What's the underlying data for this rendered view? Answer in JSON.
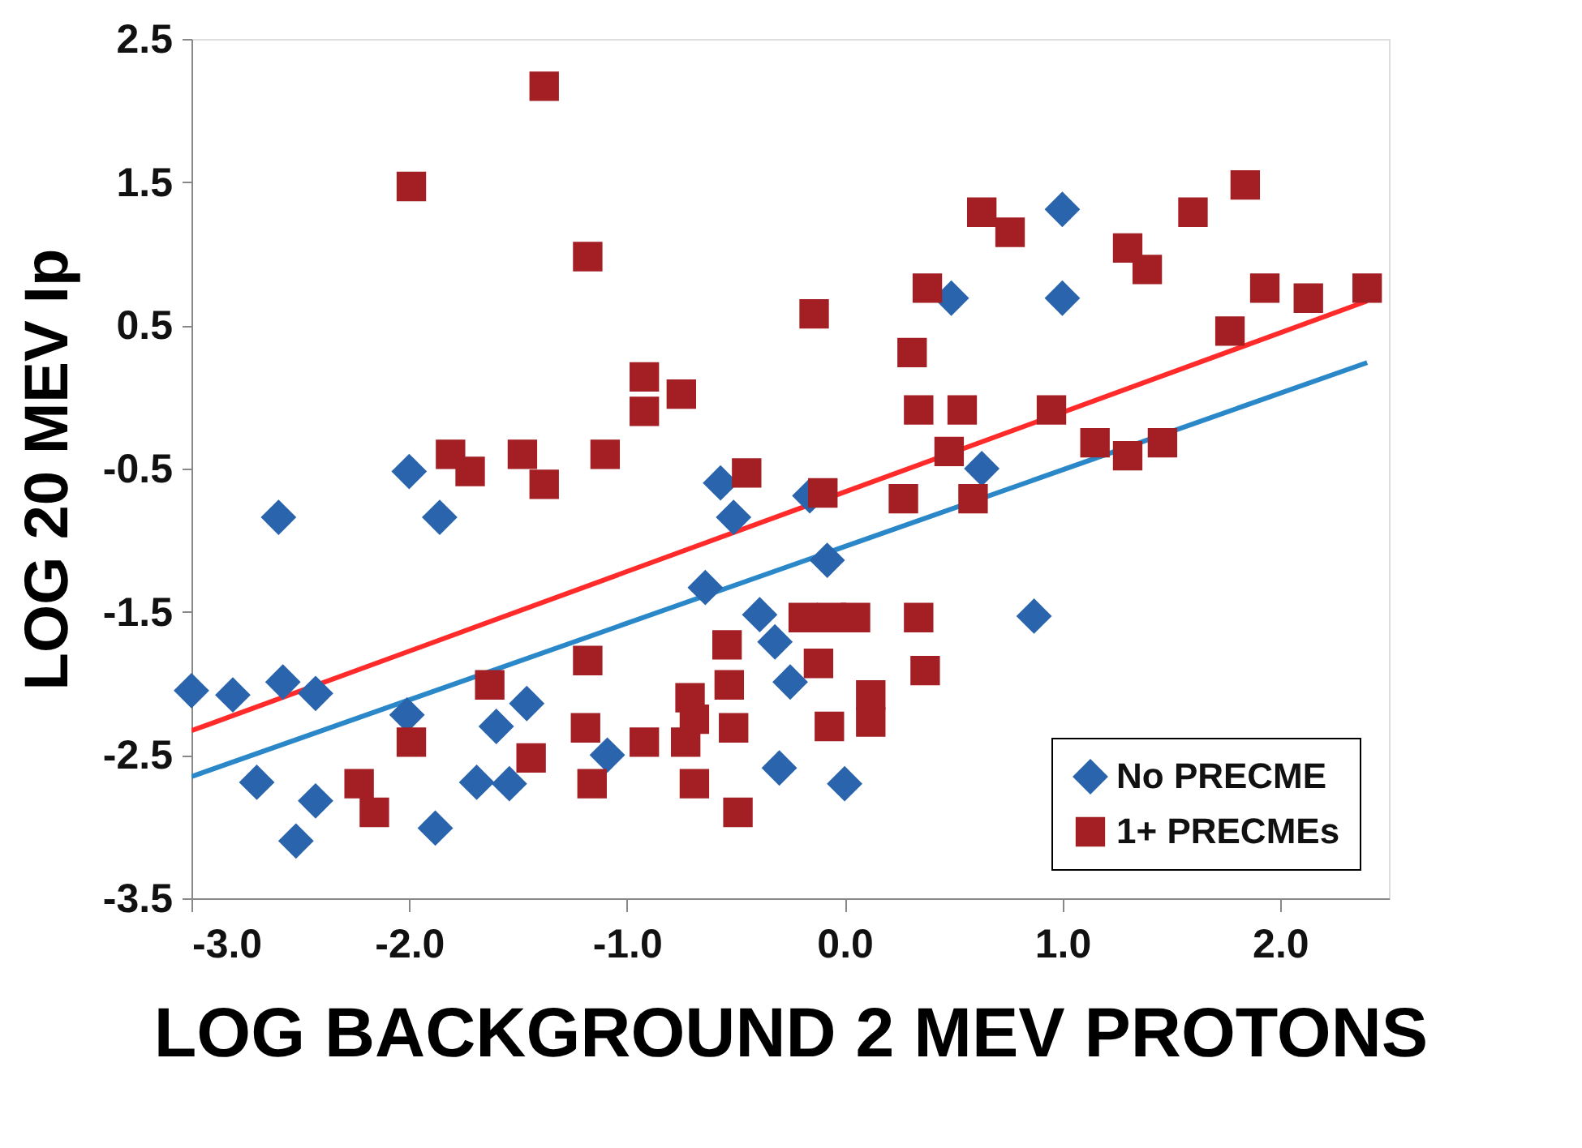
{
  "chart_data": {
    "type": "scatter",
    "xlabel": "LOG BACKGROUND 2 MEV PROTONS",
    "ylabel": "LOG 20 MEV Ip",
    "xlim": [
      -3.0,
      2.5
    ],
    "ylim": [
      -3.5,
      2.5
    ],
    "xticks": [
      {
        "value": -3,
        "label": "-3.0"
      },
      {
        "value": -2,
        "label": "-2.0"
      },
      {
        "value": -1,
        "label": "-1.0"
      },
      {
        "value": 0,
        "label": "0.0"
      },
      {
        "value": 1,
        "label": "1.0"
      },
      {
        "value": 2,
        "label": "2.0"
      }
    ],
    "yticks": [
      -3.5,
      -2.5,
      -1.5,
      -0.5,
      0.5,
      1.5,
      2.5
    ],
    "grid": false,
    "legend": "bottom right",
    "series": [
      {
        "name": "No PRECME",
        "marker": "diamond",
        "color": "#2a64ad",
        "x": [
          -3.0,
          -2.81,
          -2.6,
          -2.58,
          -2.7,
          -2.52,
          -2.43,
          -2.43,
          -2.0,
          -2.01,
          -1.86,
          -1.88,
          -1.69,
          -1.6,
          -1.54,
          -1.46,
          -1.09,
          -0.57,
          -0.51,
          -0.64,
          -0.39,
          -0.32,
          -0.25,
          -0.3,
          -0.16,
          -0.08,
          0.0,
          1.0,
          1.0,
          0.49,
          0.63,
          0.87
        ],
        "values": [
          -2.05,
          -2.08,
          -0.84,
          -1.99,
          -2.69,
          -3.1,
          -2.07,
          -2.82,
          -0.52,
          -2.22,
          -0.84,
          -3.01,
          -2.69,
          -2.3,
          -2.7,
          -2.14,
          -2.5,
          -0.6,
          -0.84,
          -1.33,
          -1.52,
          -1.71,
          -1.99,
          -2.59,
          -0.69,
          -1.14,
          -2.7,
          1.31,
          0.69,
          0.69,
          -0.5,
          -1.53
        ]
      },
      {
        "name": "1+ PRECMEs",
        "marker": "square",
        "color": "#a31f24",
        "x": [
          -1.38,
          -1.99,
          -1.18,
          -0.14,
          -0.92,
          -0.92,
          -0.75,
          -1.81,
          -1.72,
          -1.48,
          -1.38,
          -1.1,
          -0.45,
          -0.1,
          -0.19,
          -0.06,
          0.05,
          -0.12,
          -0.54,
          -0.53,
          -0.51,
          -0.49,
          -0.71,
          -0.69,
          -0.73,
          -0.69,
          -0.92,
          -1.18,
          -1.19,
          -1.16,
          -1.44,
          -1.63,
          -1.99,
          -2.23,
          -2.16,
          -0.07,
          0.27,
          0.59,
          0.34,
          0.37,
          0.12,
          0.12,
          0.63,
          0.76,
          0.38,
          0.31,
          0.34,
          0.54,
          0.95,
          0.48,
          1.15,
          1.3,
          1.46,
          1.6,
          1.84,
          1.3,
          1.39,
          1.77,
          1.93,
          2.13,
          2.4
        ],
        "values": [
          2.17,
          1.47,
          0.98,
          0.58,
          0.14,
          -0.1,
          0.02,
          -0.4,
          -0.52,
          -0.4,
          -0.61,
          -0.4,
          -0.53,
          -0.67,
          -1.54,
          -1.54,
          -1.54,
          -1.86,
          -1.73,
          -2.01,
          -2.31,
          -2.9,
          -2.1,
          -2.25,
          -2.41,
          -2.7,
          -2.41,
          -1.84,
          -2.31,
          -2.7,
          -2.52,
          -2.01,
          -2.41,
          -2.7,
          -2.9,
          -2.3,
          -0.71,
          -0.71,
          -1.54,
          -1.91,
          -2.08,
          -2.27,
          1.29,
          1.15,
          0.76,
          0.31,
          -0.09,
          -0.09,
          -0.09,
          -0.38,
          -0.32,
          -0.41,
          -0.32,
          1.29,
          1.48,
          1.04,
          0.89,
          0.46,
          0.76,
          0.69,
          0.76
        ]
      },
      {
        "type": "line",
        "color": "#ff2a2a",
        "x": [
          -3.0,
          2.4
        ],
        "values": [
          -2.33,
          0.67
        ]
      },
      {
        "type": "line",
        "color": "#2a87c8",
        "x": [
          -3.0,
          2.4
        ],
        "values": [
          -2.65,
          0.24
        ]
      }
    ]
  }
}
